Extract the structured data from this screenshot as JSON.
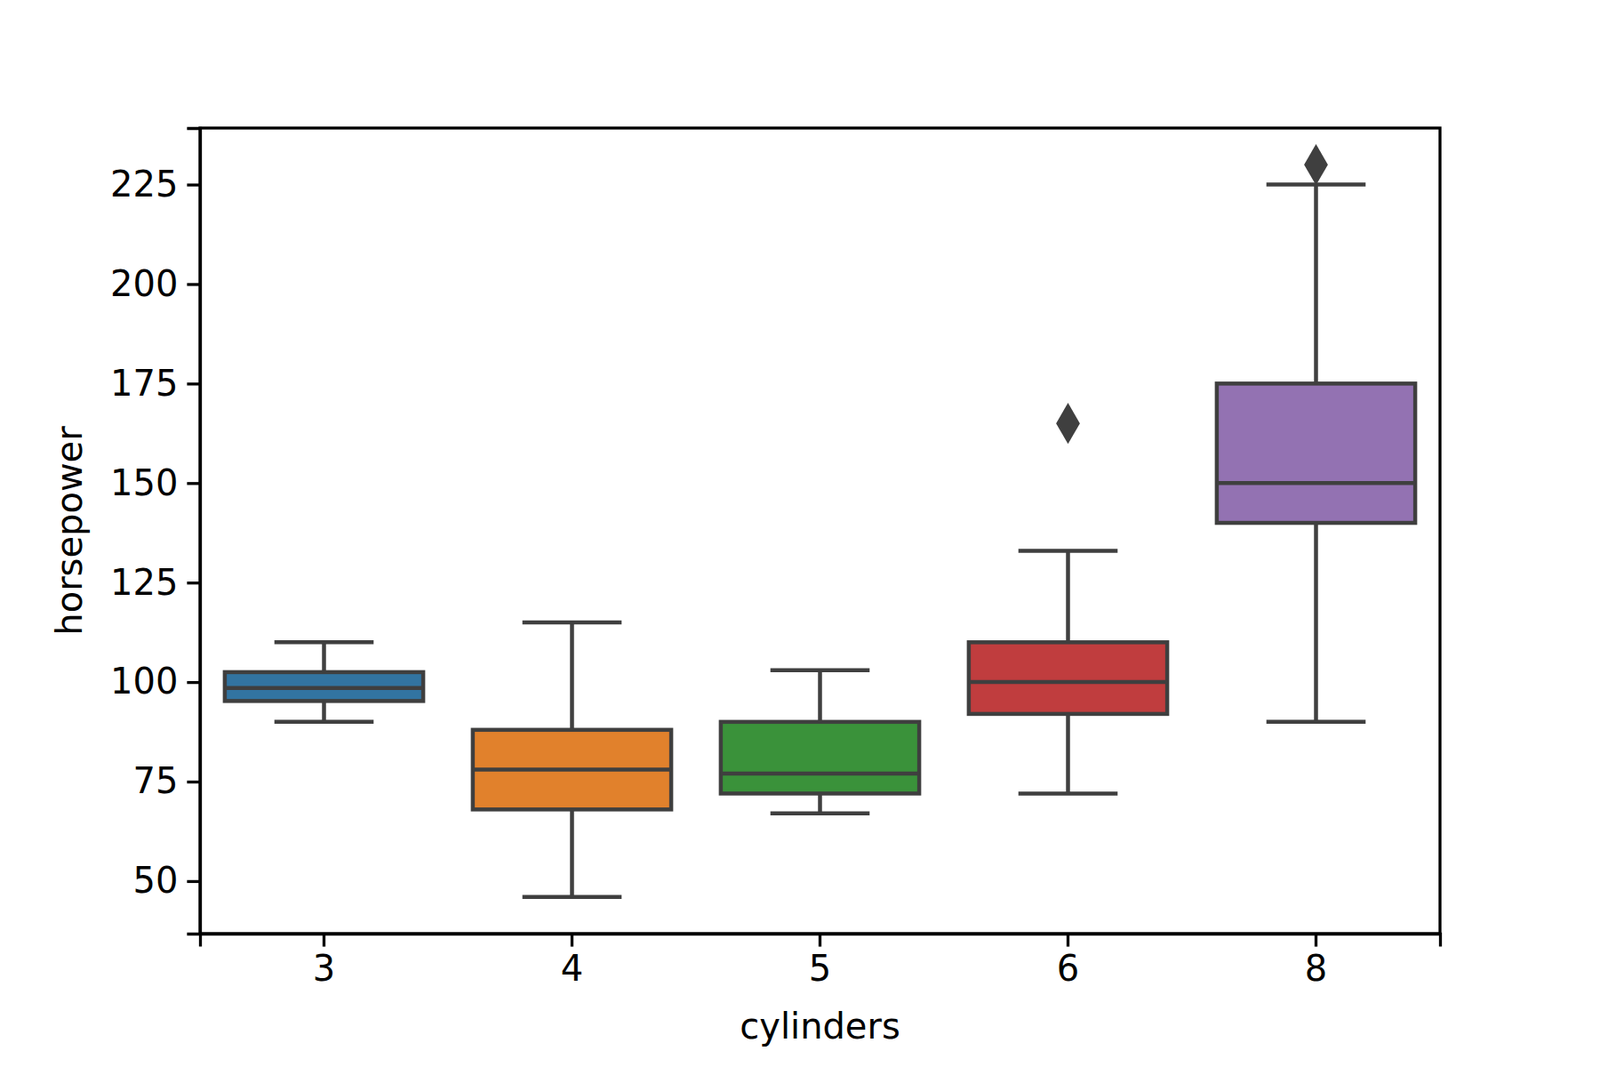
{
  "chart_data": {
    "type": "box",
    "x_label": "cylinders",
    "y_label": "horsepower",
    "categories": [
      "3",
      "4",
      "5",
      "6",
      "8"
    ],
    "colors": [
      "#3274a1",
      "#e1812c",
      "#3a923a",
      "#c03d3e",
      "#9372b2"
    ],
    "boxes": [
      {
        "low": 90,
        "q1": 95.25,
        "median": 98.5,
        "q3": 102.5,
        "high": 110,
        "outliers": []
      },
      {
        "low": 46,
        "q1": 68,
        "median": 78,
        "q3": 88,
        "high": 115,
        "outliers": []
      },
      {
        "low": 67,
        "q1": 72,
        "median": 77,
        "q3": 90,
        "high": 103,
        "outliers": []
      },
      {
        "low": 72,
        "q1": 92,
        "median": 100,
        "q3": 110,
        "high": 133,
        "outliers": [
          165
        ]
      },
      {
        "low": 90,
        "q1": 140,
        "median": 150,
        "q3": 175,
        "high": 225,
        "outliers": [
          230
        ]
      }
    ],
    "ylim": [
      36.8,
      239.2
    ],
    "yticks": [
      50,
      75,
      100,
      125,
      150,
      175,
      200,
      225
    ],
    "marker": "diamond"
  }
}
